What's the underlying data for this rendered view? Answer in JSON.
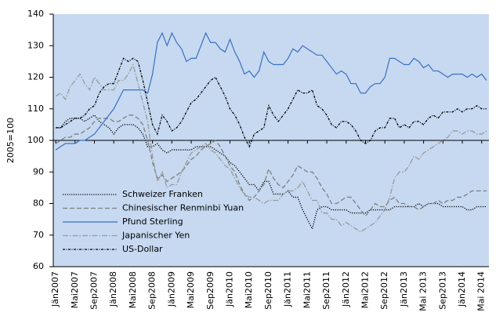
{
  "chart_data": {
    "type": "line",
    "y_label": "2005=100",
    "categories": [
      "Jän2007",
      null,
      null,
      null,
      "Mai2007",
      null,
      null,
      null,
      "Sep2007",
      null,
      null,
      null,
      "Jän2008",
      null,
      null,
      null,
      "Mai2008",
      null,
      null,
      null,
      "Sep2008",
      null,
      null,
      null,
      "Jän2009",
      null,
      null,
      null,
      "Mai2009",
      null,
      null,
      null,
      "Sep2009",
      null,
      null,
      null,
      "Jän2010",
      null,
      null,
      null,
      "Mai2010",
      null,
      null,
      null,
      "Sep2010",
      null,
      null,
      null,
      "Jän2011",
      null,
      null,
      null,
      "Mai2011",
      null,
      null,
      null,
      "Sep2011",
      null,
      null,
      null,
      "Jän2012",
      null,
      null,
      null,
      "Mai2012",
      null,
      null,
      null,
      "Sep2012",
      null,
      null,
      null,
      "Jän2013",
      null,
      null,
      null,
      "Mai 2013",
      null,
      null,
      null,
      "Sep2013",
      null,
      null,
      null,
      "Jän2014",
      null,
      null,
      null,
      "Mai 2014",
      null
    ],
    "ylim": [
      60,
      140
    ],
    "yticks": [
      60,
      70,
      80,
      90,
      100,
      110,
      120,
      130,
      140
    ],
    "reference_line": 100,
    "background": "#c6d9f1",
    "legend": "lower-left",
    "series": [
      {
        "name": "Schweizer Franken",
        "color": "#000000",
        "style": "dotted",
        "values": [
          104,
          104,
          106,
          107,
          107,
          107,
          106,
          107,
          108,
          106,
          105,
          104,
          102,
          104,
          105,
          105,
          105,
          104,
          102,
          98,
          98,
          99,
          97,
          96,
          97,
          97,
          97,
          97,
          97,
          98,
          98,
          98,
          98,
          97,
          96,
          95,
          93,
          92,
          90,
          88,
          86,
          86,
          84,
          87,
          87,
          83,
          83,
          83,
          84,
          82,
          82,
          78,
          75,
          72,
          78,
          79,
          79,
          78,
          78,
          78,
          78,
          77,
          77,
          77,
          77,
          78,
          78,
          78,
          78,
          78,
          79,
          79,
          79,
          79,
          79,
          80,
          79,
          80,
          80,
          80,
          79,
          79,
          79,
          79,
          79,
          78,
          78,
          79,
          79,
          79
        ]
      },
      {
        "name": "Chinesischer Renminbi Yuan",
        "color": "#7f7f7f",
        "style": "dashed",
        "values": [
          99,
          100,
          101,
          101,
          102,
          102,
          103,
          104,
          106,
          107,
          107,
          107,
          106,
          106,
          107,
          108,
          108,
          107,
          105,
          100,
          93,
          88,
          89,
          87,
          88,
          89,
          90,
          92,
          94,
          95,
          97,
          98,
          99,
          100,
          98,
          95,
          92,
          90,
          86,
          83,
          81,
          82,
          84,
          86,
          91,
          88,
          86,
          85,
          87,
          89,
          92,
          91,
          90,
          90,
          88,
          85,
          83,
          80,
          80,
          81,
          82,
          82,
          80,
          78,
          76,
          78,
          80,
          79,
          79,
          81,
          82,
          80,
          80,
          79,
          79,
          78,
          79,
          80,
          80,
          81,
          80,
          81,
          81,
          82,
          82,
          83,
          84,
          84,
          84,
          84
        ]
      },
      {
        "name": "Pfund Sterling",
        "color": "#3b6fc2",
        "style": "solid",
        "values": [
          97,
          98,
          99,
          99,
          99,
          100,
          100,
          101,
          102,
          104,
          106,
          108,
          110,
          113,
          116,
          116,
          116,
          116,
          116,
          115,
          121,
          131,
          134,
          130,
          134,
          131,
          129,
          125,
          126,
          126,
          130,
          134,
          131,
          131,
          129,
          128,
          132,
          128,
          125,
          121,
          122,
          120,
          122,
          128,
          125,
          124,
          124,
          124,
          126,
          129,
          128,
          130,
          129,
          128,
          127,
          127,
          125,
          123,
          121,
          122,
          121,
          118,
          118,
          115,
          115,
          117,
          118,
          118,
          120,
          126,
          126,
          125,
          124,
          124,
          126,
          125,
          123,
          124,
          122,
          122,
          121,
          120,
          121,
          121,
          121,
          120,
          121,
          120,
          121,
          119
        ]
      },
      {
        "name": "Japanischer Yen",
        "color": "#9a9a9a",
        "style": "dashdot",
        "values": [
          114,
          115,
          113,
          117,
          119,
          121,
          118,
          116,
          120,
          118,
          116,
          116,
          116,
          119,
          119,
          121,
          124,
          118,
          112,
          106,
          95,
          87,
          90,
          85,
          86,
          86,
          90,
          93,
          96,
          97,
          98,
          99,
          97,
          96,
          94,
          92,
          91,
          88,
          85,
          83,
          82,
          82,
          81,
          80,
          81,
          81,
          81,
          83,
          84,
          84,
          85,
          87,
          84,
          81,
          81,
          77,
          77,
          75,
          75,
          73,
          74,
          73,
          72,
          71,
          72,
          73,
          74,
          76,
          78,
          82,
          88,
          90,
          90,
          92,
          95,
          94,
          96,
          97,
          98,
          99,
          100,
          101,
          103,
          103,
          102,
          103,
          103,
          102,
          102,
          103
        ]
      },
      {
        "name": "US-Dollar",
        "color": "#000000",
        "style": "dashdotdot",
        "values": [
          104,
          104,
          105,
          106,
          107,
          107,
          108,
          110,
          111,
          115,
          117,
          118,
          118,
          122,
          126,
          125,
          126,
          125,
          119,
          112,
          105,
          102,
          108,
          106,
          103,
          104,
          106,
          109,
          112,
          113,
          115,
          117,
          119,
          120,
          117,
          114,
          110,
          108,
          105,
          101,
          98,
          102,
          103,
          104,
          111,
          108,
          106,
          108,
          110,
          113,
          116,
          115,
          115,
          116,
          111,
          110,
          108,
          105,
          104,
          106,
          106,
          105,
          103,
          100,
          99,
          100,
          103,
          104,
          104,
          107,
          107,
          104,
          105,
          104,
          106,
          106,
          105,
          107,
          108,
          107,
          109,
          109,
          109,
          110,
          109,
          110,
          110,
          111,
          110,
          110
        ]
      }
    ]
  }
}
